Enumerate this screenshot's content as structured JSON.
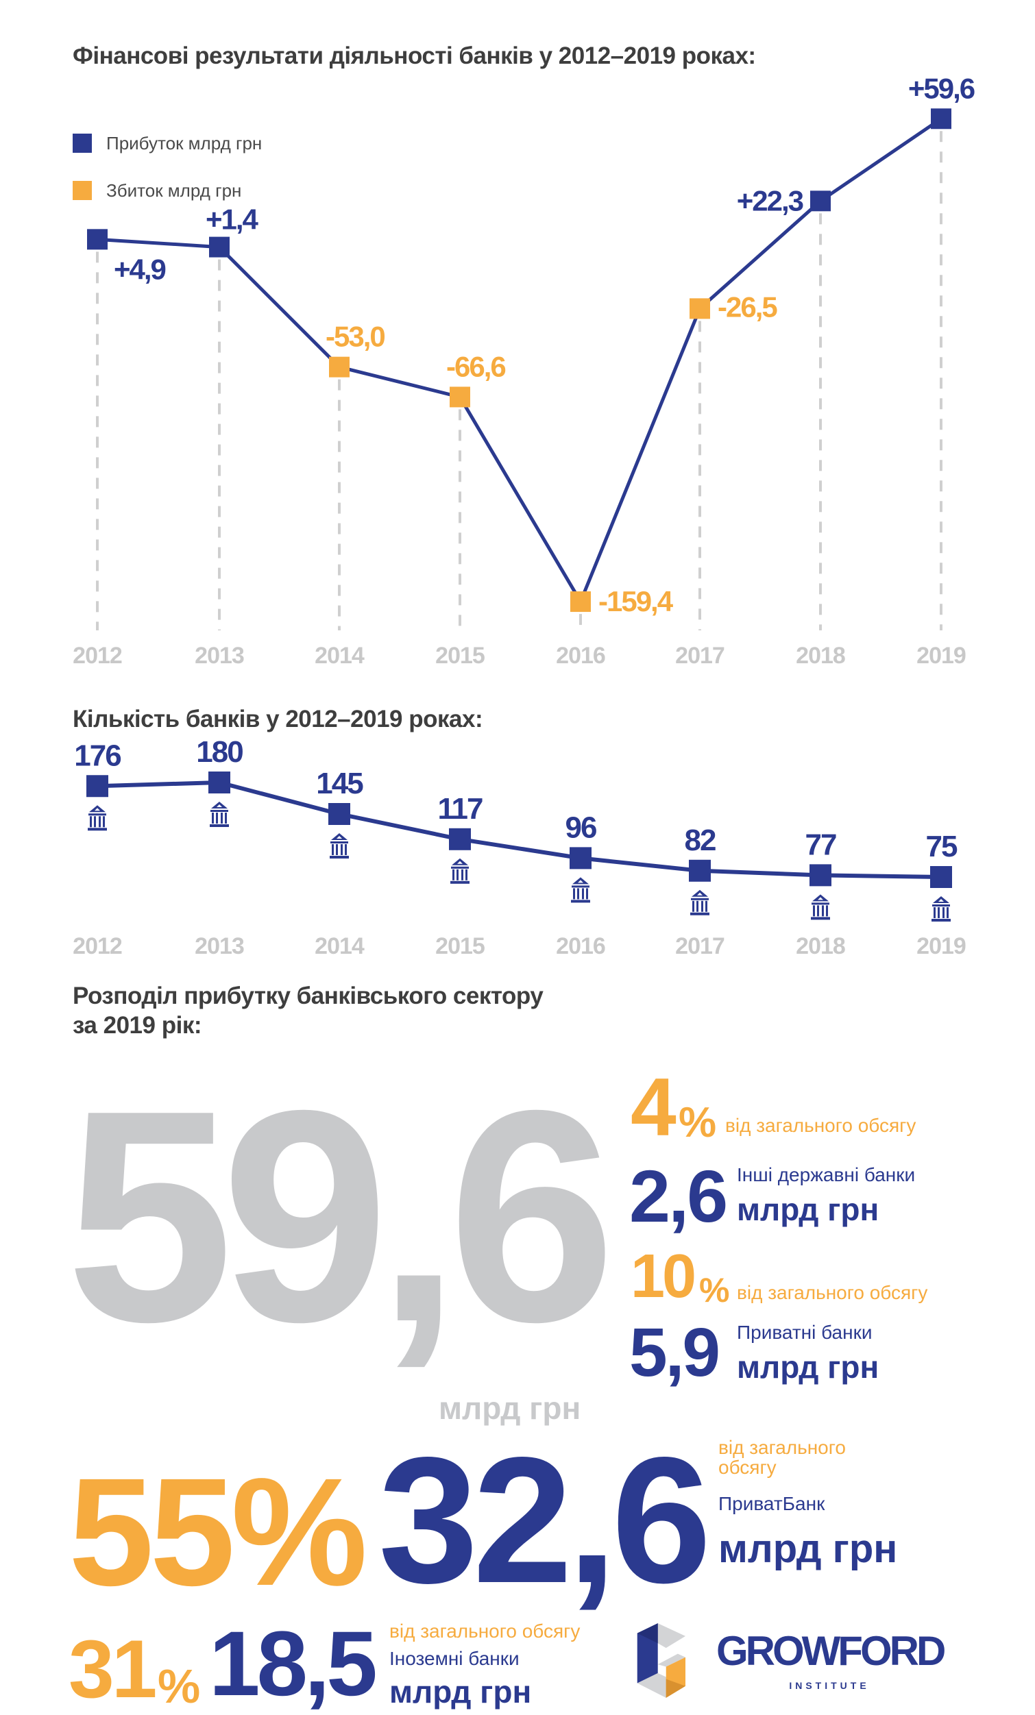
{
  "colors": {
    "profit": "#2b3a8f",
    "loss": "#f6ab3f",
    "grey": "#c8c9cb",
    "title": "#3e3e3e"
  },
  "chart_data": [
    {
      "type": "line",
      "title": "Фінансові результати діяльності банків у 2012–2019 роках:",
      "categories": [
        "2012",
        "2013",
        "2014",
        "2015",
        "2016",
        "2017",
        "2018",
        "2019"
      ],
      "values": [
        4.9,
        1.4,
        -53.0,
        -66.6,
        -159.4,
        -26.5,
        22.3,
        59.6
      ],
      "labels": [
        "+4,9",
        "+1,4",
        "-53,0",
        "-66,6",
        "-159,4",
        "-26,5",
        "+22,3",
        "+59,6"
      ],
      "legend": [
        {
          "name": "Прибуток млрд грн",
          "color": "#2b3a8f"
        },
        {
          "name": "Збиток млрд грн",
          "color": "#f6ab3f"
        }
      ],
      "legend_position": "top-left",
      "ylim": [
        -160,
        60
      ],
      "grid": "dashed vertical drop lines"
    },
    {
      "type": "line",
      "title": "Кількість банків у 2012–2019 роках:",
      "categories": [
        "2012",
        "2013",
        "2014",
        "2015",
        "2016",
        "2017",
        "2018",
        "2019"
      ],
      "values": [
        176,
        180,
        145,
        117,
        96,
        82,
        77,
        75
      ],
      "ylim": [
        75,
        180
      ],
      "marker_icon": "bank-icon"
    }
  ],
  "distribution": {
    "title_line1": "Розподіл прибутку банківського сектору",
    "title_line2": "за 2019 рік:",
    "total": {
      "value": "59,6",
      "unit": "млрд грн"
    },
    "share_note": "від загального обсягу",
    "share_note_line1": "від загального",
    "share_note_line2": "обсягу",
    "unit": "млрд грн",
    "privatbank": {
      "percent": "55",
      "value": "32,6",
      "name": "ПриватБанк"
    },
    "other_state": {
      "percent": "4",
      "value": "2,6",
      "name": "Інші державні банки"
    },
    "foreign": {
      "percent": "31",
      "value": "18,5",
      "name": "Іноземні банки"
    },
    "private": {
      "percent": "10",
      "value": "5,9",
      "name": "Приватні банки"
    },
    "percent_sign": "%"
  },
  "logo": {
    "name": "GROWFORD",
    "sub": "INSTITUTE"
  }
}
